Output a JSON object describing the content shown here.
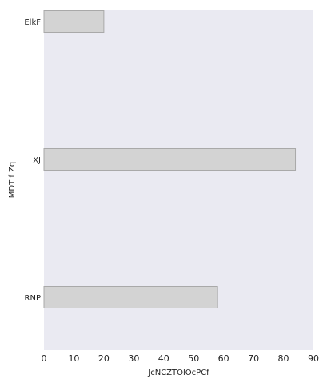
{
  "chart_data": {
    "type": "bar",
    "orientation": "horizontal",
    "categories": [
      "ElkF",
      "XJ",
      "RNP"
    ],
    "values": [
      20,
      84,
      58
    ],
    "xlabel": "JcNCZTOlOcPCf",
    "ylabel": "MDT f Zq",
    "xlim": [
      0,
      90
    ],
    "xticks": [
      "0",
      "10",
      "20",
      "30",
      "40",
      "50",
      "60",
      "70",
      "80",
      "90"
    ],
    "grid": false,
    "colors": {
      "plot_background": "#eaeaf2",
      "bar_fill": "#d3d3d3",
      "bar_stroke": "#a9a9a9"
    }
  }
}
